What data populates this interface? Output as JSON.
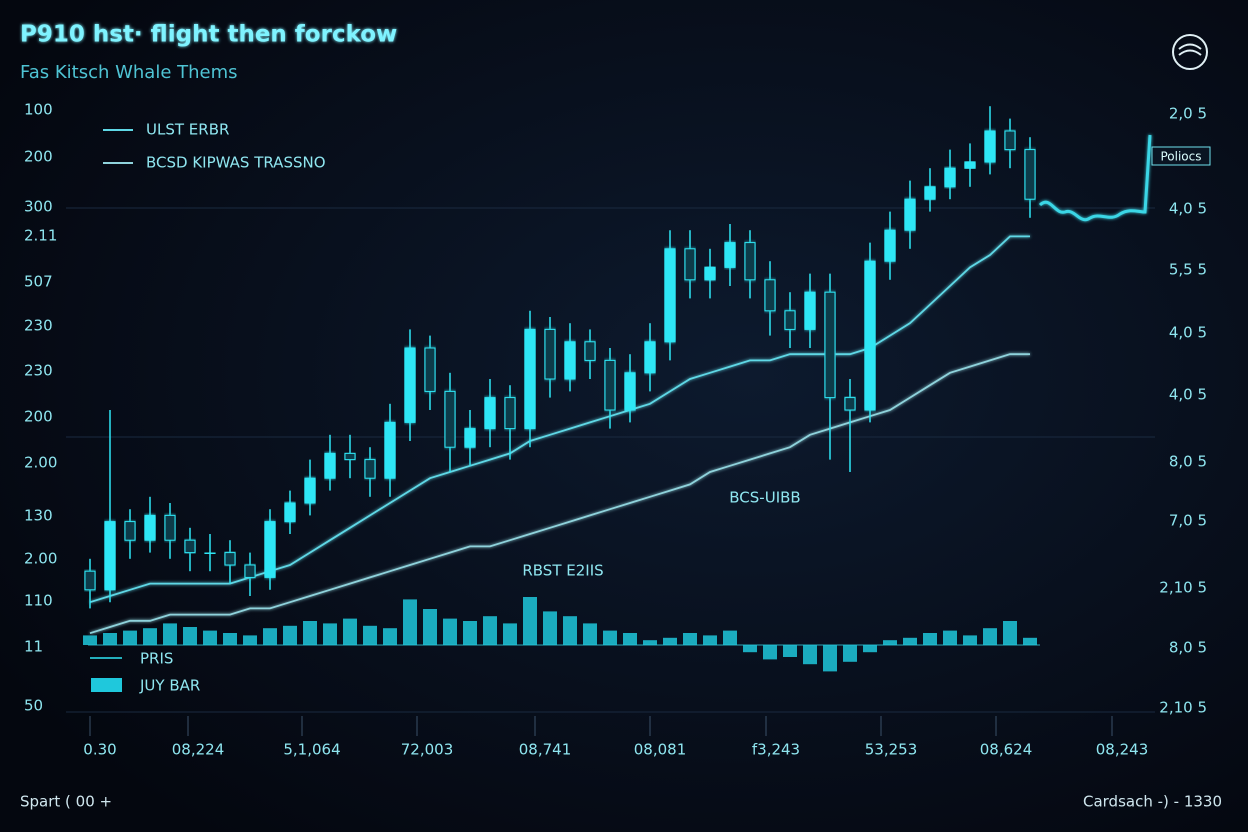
{
  "chart_data": {
    "type": "candlestick",
    "title": "P910 hst· flight then forckow",
    "subtitle": "Fas Kitsch Whale Thems",
    "left_labels": [
      "100",
      "200",
      "300",
      "2.11",
      "507",
      "230",
      "230",
      "200",
      "2.00",
      "130",
      "2.00",
      "110",
      "11",
      "50"
    ],
    "right_labels": [
      "2,0 5",
      "4,0 5",
      "5,5 5",
      "4,0 5",
      "4,0 5",
      "8,0 5",
      "7,0 5",
      "2,10 5",
      "8,0 5",
      "2,10 5"
    ],
    "x_labels": [
      "0.30",
      "08,224",
      "5,1,064",
      "72,003",
      "08,741",
      "08,081",
      "f3,243",
      "53,253",
      "08,624",
      "08,243"
    ],
    "annotations": [
      "RBST E2IIS",
      "BCS-UIBB",
      "Poliocs"
    ],
    "footer_left": "Spart ( 00 +",
    "footer_right": "Cardsach -) - 1330",
    "ylim": [
      0,
      100
    ],
    "candles": {
      "name": "PRIS",
      "color": "#2ee6f5",
      "open": [
        24,
        21,
        32,
        29,
        33,
        29,
        27,
        27,
        25,
        23,
        32,
        35,
        39,
        43,
        42,
        39,
        48,
        60,
        53,
        44,
        47,
        52,
        47,
        63,
        55,
        61,
        58,
        50,
        56,
        61,
        76,
        71,
        73,
        77,
        71,
        66,
        63,
        69,
        52,
        50,
        74,
        79,
        84,
        86,
        89,
        90,
        95,
        92
      ],
      "high": [
        26,
        50,
        34,
        36,
        35,
        31,
        30,
        29,
        27,
        34,
        37,
        42,
        46,
        46,
        44,
        51,
        63,
        62,
        56,
        50,
        55,
        54,
        66,
        65,
        64,
        63,
        60,
        59,
        64,
        79,
        79,
        76,
        80,
        79,
        74,
        69,
        72,
        72,
        55,
        77,
        82,
        87,
        89,
        92,
        93,
        99,
        97,
        94
      ],
      "low": [
        18,
        19,
        26,
        27,
        26,
        24,
        24,
        22,
        20,
        21,
        30,
        33,
        37,
        39,
        36,
        36,
        45,
        50,
        40,
        41,
        44,
        42,
        44,
        52,
        53,
        55,
        47,
        48,
        53,
        58,
        68,
        68,
        70,
        68,
        62,
        60,
        60,
        42,
        40,
        48,
        71,
        76,
        82,
        84,
        86,
        88,
        89,
        81
      ],
      "close": [
        21,
        32,
        29,
        33,
        29,
        27,
        27,
        25,
        23,
        32,
        35,
        39,
        43,
        42,
        39,
        48,
        60,
        53,
        44,
        47,
        52,
        47,
        63,
        55,
        61,
        58,
        50,
        56,
        61,
        76,
        71,
        73,
        77,
        71,
        66,
        63,
        69,
        52,
        50,
        74,
        79,
        84,
        86,
        89,
        90,
        95,
        92,
        84
      ]
    },
    "series": [
      {
        "name": "ULST ERBR",
        "color": "#5fd8e6",
        "values": [
          19,
          20,
          21,
          22,
          22,
          22,
          22,
          22,
          23,
          24,
          25,
          27,
          29,
          31,
          33,
          35,
          37,
          39,
          40,
          41,
          42,
          43,
          45,
          46,
          47,
          48,
          49,
          50,
          51,
          53,
          55,
          56,
          57,
          58,
          58,
          59,
          59,
          59,
          59,
          60,
          62,
          64,
          67,
          70,
          73,
          75,
          78,
          78
        ]
      },
      {
        "name": "BCSD KIPWAS TRASSNO",
        "color": "#8fd3dc",
        "values": [
          14,
          15,
          16,
          16,
          17,
          17,
          17,
          17,
          18,
          18,
          19,
          20,
          21,
          22,
          23,
          24,
          25,
          26,
          27,
          28,
          28,
          29,
          30,
          31,
          32,
          33,
          34,
          35,
          36,
          37,
          38,
          40,
          41,
          42,
          43,
          44,
          46,
          47,
          48,
          49,
          50,
          52,
          54,
          56,
          57,
          58,
          59,
          59
        ]
      }
    ],
    "volume": {
      "name": "JUY BAR",
      "color": "#1fc8dc",
      "ylim": [
        -30,
        40
      ],
      "values": [
        8,
        10,
        12,
        14,
        18,
        15,
        12,
        10,
        8,
        14,
        16,
        20,
        18,
        22,
        16,
        14,
        38,
        30,
        22,
        20,
        24,
        18,
        40,
        28,
        24,
        18,
        12,
        10,
        4,
        6,
        10,
        8,
        12,
        -6,
        -12,
        -10,
        -16,
        -22,
        -14,
        -6,
        4,
        6,
        10,
        12,
        8,
        14,
        20,
        6
      ]
    }
  }
}
